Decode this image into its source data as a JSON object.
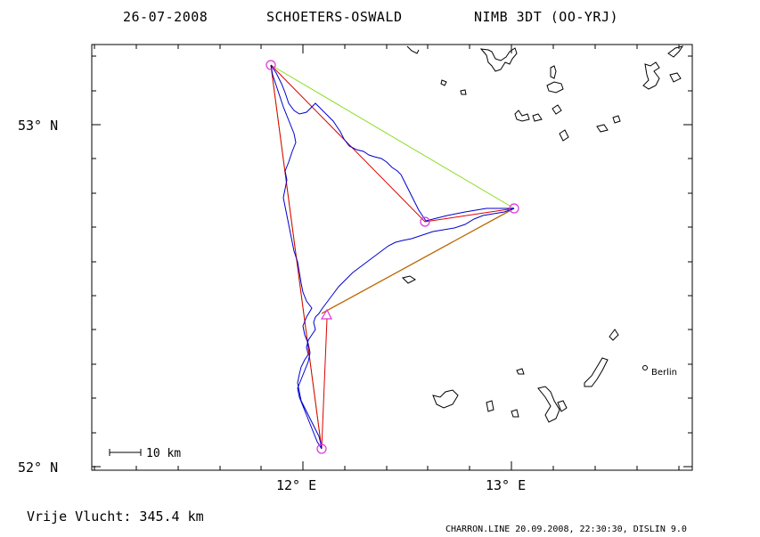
{
  "title": {
    "date": "26-07-2008",
    "pilots": "SCHOETERS-OSWALD",
    "aircraft": "NIMB 3DT (OO-YRJ)"
  },
  "axes": {
    "lat_labels": [
      "53° N",
      "52° N"
    ],
    "lon_labels": [
      "12° E",
      "13° E"
    ]
  },
  "scale_bar": {
    "label": "10 km"
  },
  "city": {
    "name": "Berlin"
  },
  "footer": {
    "free_flight": "Vrije Vlucht:  345.4 km",
    "credit": "CHARRON.LINE 20.09.2008, 22:30:30, DISLIN 9.0"
  },
  "colors": {
    "track": "#0000cc",
    "task_red": "#dd0000",
    "task_green": "#88dd22",
    "task_orange": "#bb6600",
    "turnpoint": "#dd33dd",
    "coast": "#000000"
  }
}
